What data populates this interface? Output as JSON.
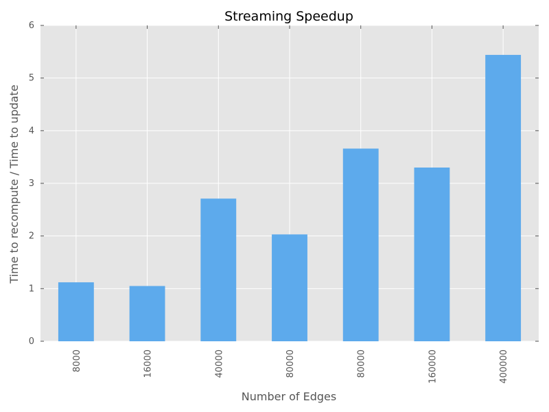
{
  "chart_data": {
    "type": "bar",
    "title": "Streaming Speedup",
    "xlabel": "Number of Edges",
    "ylabel": "Time to recompute / Time to update",
    "categories": [
      "8000",
      "16000",
      "40000",
      "80000",
      "80000",
      "160000",
      "400000"
    ],
    "values": [
      1.12,
      1.05,
      2.71,
      2.03,
      3.66,
      3.3,
      5.44
    ],
    "ylim": [
      0,
      6
    ],
    "yticks": [
      "0",
      "1",
      "2",
      "3",
      "4",
      "5",
      "6"
    ],
    "grid": true,
    "legend": "none"
  },
  "colors": {
    "bar": "#5DAAEC",
    "plot_background": "#E5E5E5",
    "grid": "#FFFFFF",
    "text": "#555555"
  }
}
